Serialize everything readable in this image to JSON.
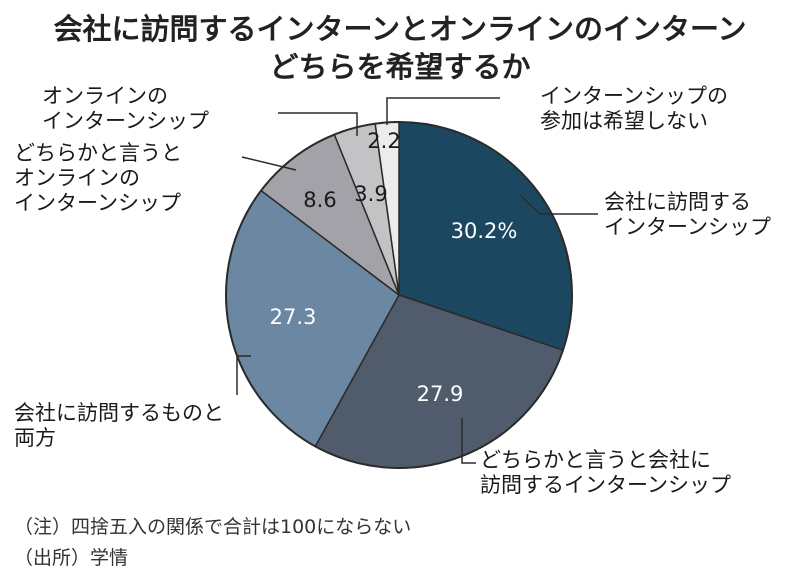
{
  "chart_data": {
    "type": "pie",
    "title": [
      "会社に訪問するインターンとオンラインのインターン",
      "どちらを希望するか"
    ],
    "slices": [
      {
        "id": "visit",
        "value": 30.2,
        "value_label": "30.2%",
        "label_lines": [
          "会社に訪問する",
          "インターンシップ"
        ],
        "color": "#1c4760",
        "text_color": "#ffffff"
      },
      {
        "id": "rather-visit",
        "value": 27.9,
        "value_label": "27.9",
        "label_lines": [
          "どちらかと言うと会社に",
          "訪問するインターンシップ"
        ],
        "color": "#505c6c",
        "text_color": "#ffffff"
      },
      {
        "id": "both",
        "value": 27.3,
        "value_label": "27.3",
        "label_lines": [
          "会社に訪問するものと",
          "両方"
        ],
        "color": "#6c87a1",
        "text_color": "#ffffff"
      },
      {
        "id": "rather-online",
        "value": 8.6,
        "value_label": "8.6",
        "label_lines": [
          "どちらかと言うと",
          "オンラインの",
          "インターンシップ"
        ],
        "color": "#a2a2a8",
        "text_color": "#1a1a1a"
      },
      {
        "id": "online",
        "value": 3.9,
        "value_label": "3.9",
        "label_lines": [
          "オンラインの",
          "インターンシップ"
        ],
        "color": "#c3c3c6",
        "text_color": "#1a1a1a"
      },
      {
        "id": "none",
        "value": 2.2,
        "value_label": "2.2",
        "label_lines": [
          "インターンシップの",
          "参加は希望しない"
        ],
        "color": "#ececec",
        "text_color": "#1a1a1a"
      }
    ]
  },
  "notes": {
    "note1": "（注）四捨五入の関係で合計は100にならない",
    "source": "（出所）学情"
  }
}
